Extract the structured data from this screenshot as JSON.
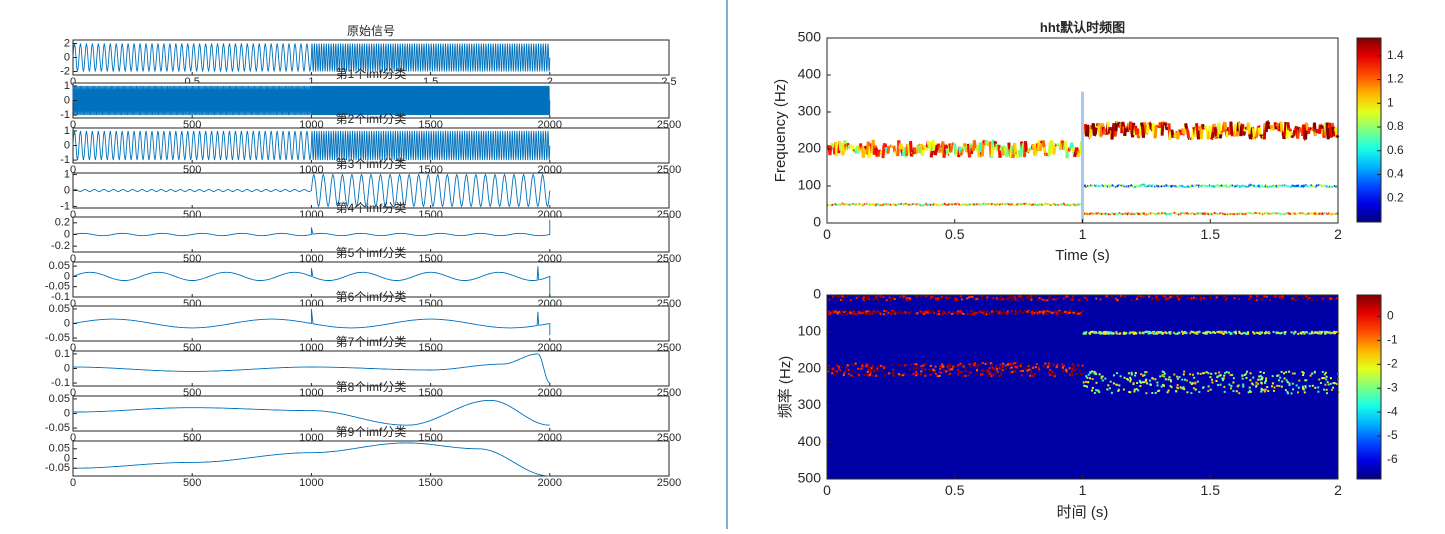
{
  "chart_data": [
    {
      "type": "line",
      "title": "原始信号",
      "xlim": [
        0,
        2.5
      ],
      "xticks": [
        "0",
        "0.5",
        "1",
        "1.5",
        "2",
        "2.5"
      ],
      "yticks": [
        "2",
        "0",
        "-2"
      ],
      "ylim": [
        -2.5,
        2.5
      ],
      "signal": {
        "segments": [
          {
            "x": [
              0,
              1
            ],
            "amplitude": 2,
            "cycles": 40
          },
          {
            "x": [
              1,
              2
            ],
            "amplitude": 2,
            "cycles": 100
          }
        ]
      },
      "series_color": "#0072bd"
    },
    {
      "type": "line",
      "title": "第1个imf分类",
      "xlim": [
        0,
        2500
      ],
      "xticks": [
        "0",
        "500",
        "1000",
        "1500",
        "2000",
        "2500"
      ],
      "yticks": [
        "1",
        "0",
        "-1"
      ],
      "ylim": [
        -1.2,
        1.2
      ],
      "signal": {
        "segments": [
          {
            "x": [
              0,
              1000
            ],
            "amplitude": 1,
            "cycles": 200
          },
          {
            "x": [
              1000,
              2000
            ],
            "amplitude": 1,
            "cycles": 250
          }
        ]
      }
    },
    {
      "type": "line",
      "title": "第2个imf分类",
      "xlim": [
        0,
        2500
      ],
      "xticks": [
        "0",
        "500",
        "1000",
        "1500",
        "2000",
        "2500"
      ],
      "yticks": [
        "1",
        "0",
        "-1"
      ],
      "ylim": [
        -1.2,
        1.2
      ],
      "signal": {
        "segments": [
          {
            "x": [
              0,
              1000
            ],
            "amplitude": 1,
            "cycles": 40
          },
          {
            "x": [
              1000,
              2000
            ],
            "amplitude": 1,
            "cycles": 100
          }
        ]
      }
    },
    {
      "type": "line",
      "title": "第3个imf分类",
      "xlim": [
        0,
        2500
      ],
      "xticks": [
        "0",
        "500",
        "1000",
        "1500",
        "2000",
        "2500"
      ],
      "yticks": [
        "1",
        "0",
        "-1"
      ],
      "ylim": [
        -1.1,
        1.1
      ],
      "signal": {
        "segments": [
          {
            "x": [
              0,
              1000
            ],
            "amplitude": 0.06,
            "cycles": 25
          },
          {
            "x": [
              1000,
              2000
            ],
            "amplitude": 1,
            "cycles": 25
          }
        ]
      }
    },
    {
      "type": "line",
      "title": "第4个imf分类",
      "xlim": [
        0,
        2500
      ],
      "xticks": [
        "0",
        "500",
        "1000",
        "1500",
        "2000",
        "2500"
      ],
      "yticks": [
        "0.2",
        "0",
        "-0.2"
      ],
      "ylim": [
        -0.3,
        0.3
      ],
      "signal": {
        "segments": [
          {
            "x": [
              0,
              2000
            ],
            "amplitude": 0.02,
            "cycles": 12
          }
        ],
        "spikes": [
          [
            1000,
            0.12
          ],
          [
            2000,
            0.25
          ]
        ]
      }
    },
    {
      "type": "line",
      "title": "第5个imf分类",
      "xlim": [
        0,
        2500
      ],
      "xticks": [
        "0",
        "500",
        "1000",
        "1500",
        "2000",
        "2500"
      ],
      "yticks": [
        "0.05",
        "0",
        "-0.05",
        "-0.1"
      ],
      "ylim": [
        -0.1,
        0.07
      ],
      "signal": {
        "segments": [
          {
            "x": [
              0,
              2000
            ],
            "amplitude": 0.02,
            "cycles": 7
          }
        ],
        "spikes": [
          [
            1000,
            0.04
          ],
          [
            1950,
            0.05
          ],
          [
            2000,
            -0.1
          ]
        ]
      }
    },
    {
      "type": "line",
      "title": "第6个imf分类",
      "xlim": [
        0,
        2500
      ],
      "xticks": [
        "0",
        "500",
        "1000",
        "1500",
        "2000",
        "2500"
      ],
      "yticks": [
        "0.05",
        "0",
        "-0.05"
      ],
      "ylim": [
        -0.06,
        0.06
      ],
      "signal": {
        "segments": [
          {
            "x": [
              0,
              2000
            ],
            "amplitude": 0.015,
            "cycles": 3
          }
        ],
        "spikes": [
          [
            1000,
            0.05
          ],
          [
            1950,
            0.04
          ],
          [
            2000,
            -0.04
          ]
        ]
      }
    },
    {
      "type": "line",
      "title": "第7个imf分类",
      "xlim": [
        0,
        2500
      ],
      "xticks": [
        "0",
        "500",
        "1000",
        "1500",
        "2000",
        "2500"
      ],
      "yticks": [
        "0.1",
        "0",
        "-0.1"
      ],
      "ylim": [
        -0.12,
        0.12
      ],
      "signal": {
        "curve": [
          [
            0,
            0.01
          ],
          [
            500,
            -0.02
          ],
          [
            1000,
            0.01
          ],
          [
            1500,
            -0.01
          ],
          [
            1800,
            0.03
          ],
          [
            1950,
            0.1
          ],
          [
            2000,
            -0.1
          ]
        ]
      }
    },
    {
      "type": "line",
      "title": "第8个imf分类",
      "xlim": [
        0,
        2500
      ],
      "xticks": [
        "0",
        "500",
        "1000",
        "1500",
        "2000",
        "2500"
      ],
      "yticks": [
        "0.05",
        "0",
        "-0.05"
      ],
      "ylim": [
        -0.06,
        0.06
      ],
      "signal": {
        "curve": [
          [
            0,
            0.005
          ],
          [
            500,
            0.02
          ],
          [
            1000,
            0.01
          ],
          [
            1400,
            -0.04
          ],
          [
            1750,
            0.045
          ],
          [
            2000,
            -0.04
          ]
        ]
      }
    },
    {
      "type": "line",
      "title": "第9个imf分类",
      "xlim": [
        0,
        2500
      ],
      "xticks": [
        "0",
        "500",
        "1000",
        "1500",
        "2000",
        "2500"
      ],
      "yticks": [
        "0.05",
        "0",
        "-0.05"
      ],
      "ylim": [
        -0.09,
        0.09
      ],
      "signal": {
        "curve": [
          [
            0,
            -0.05
          ],
          [
            500,
            -0.02
          ],
          [
            1000,
            0.03
          ],
          [
            1400,
            0.08
          ],
          [
            1700,
            0.05
          ],
          [
            2000,
            -0.09
          ]
        ]
      }
    },
    {
      "type": "scatter",
      "title": "hht默认时频图",
      "xlabel": "Time (s)",
      "ylabel": "Frequency (Hz)",
      "xlim": [
        0,
        2
      ],
      "ylim": [
        0,
        500
      ],
      "xticks": [
        "0",
        "0.5",
        "1",
        "1.5",
        "2"
      ],
      "yticks": [
        "0",
        "100",
        "200",
        "300",
        "400",
        "500"
      ],
      "colorbar_ticks": [
        "0.2",
        "0.4",
        "0.6",
        "0.8",
        "1",
        "1.2",
        "1.4"
      ],
      "colorbar_range": [
        0,
        1.55
      ],
      "series": [
        {
          "x": [
            0,
            1
          ],
          "freq": 200,
          "jitter": 25,
          "level": 1.05
        },
        {
          "x": [
            1,
            2
          ],
          "freq": 250,
          "jitter": 25,
          "level": 1.3
        },
        {
          "x": [
            0,
            1
          ],
          "freq": 50,
          "jitter": 3,
          "level": 1.0
        },
        {
          "x": [
            1,
            2
          ],
          "freq": 100,
          "jitter": 4,
          "level": 0.6
        },
        {
          "x": [
            1,
            2
          ],
          "freq": 25,
          "jitter": 3,
          "level": 1.0
        }
      ]
    },
    {
      "type": "heatmap",
      "xlabel": "时间 (s)",
      "ylabel": "频率 (Hz)",
      "xlim": [
        0,
        2
      ],
      "ylim": [
        0,
        500
      ],
      "y_reversed": true,
      "xticks": [
        "0",
        "0.5",
        "1",
        "1.5",
        "2"
      ],
      "yticks": [
        "0",
        "100",
        "200",
        "300",
        "400",
        "500"
      ],
      "colorbar_ticks": [
        "0",
        "-1",
        "-2",
        "-3",
        "-4",
        "-5",
        "-6"
      ],
      "colorbar_range": [
        -6.8,
        0.9
      ],
      "background_level": -6.5,
      "ridges": [
        {
          "x": [
            0,
            1
          ],
          "freq": 200,
          "spread": 18,
          "level": 0.3
        },
        {
          "x": [
            1,
            2
          ],
          "freq": 235,
          "spread": 30,
          "level": -2.5
        },
        {
          "x": [
            0,
            1
          ],
          "freq": 45,
          "spread": 5,
          "level": 0.5
        },
        {
          "x": [
            1,
            2
          ],
          "freq": 100,
          "spread": 3,
          "level": -2.5
        },
        {
          "x": [
            0,
            2
          ],
          "freq": 6,
          "spread": 6,
          "level": 0.6
        }
      ]
    }
  ],
  "colors": {
    "line": "#0072bd",
    "axis": "#262626",
    "grid_bg": "#ffffff",
    "divider": "#7fb0d8"
  }
}
